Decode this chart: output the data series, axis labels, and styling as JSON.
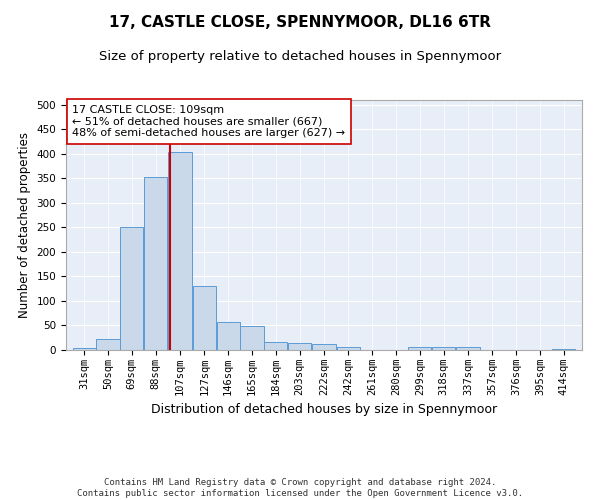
{
  "title1": "17, CASTLE CLOSE, SPENNYMOOR, DL16 6TR",
  "title2": "Size of property relative to detached houses in Spennymoor",
  "xlabel": "Distribution of detached houses by size in Spennymoor",
  "ylabel": "Number of detached properties",
  "bin_edges": [
    31,
    50,
    69,
    88,
    107,
    127,
    146,
    165,
    184,
    203,
    222,
    242,
    261,
    280,
    299,
    318,
    337,
    357,
    376,
    395,
    414
  ],
  "bar_heights": [
    5,
    22,
    250,
    353,
    403,
    130,
    57,
    48,
    17,
    14,
    12,
    6,
    1,
    0,
    6,
    6,
    6,
    0,
    1,
    0,
    3
  ],
  "bar_color": "#c9d9ea",
  "bar_edge_color": "#5b9bd5",
  "vline_x": 109,
  "vline_color": "#cc0000",
  "annotation_line1": "17 CASTLE CLOSE: 109sqm",
  "annotation_line2": "← 51% of detached houses are smaller (667)",
  "annotation_line3": "48% of semi-detached houses are larger (627) →",
  "annotation_box_color": "#ffffff",
  "annotation_box_edge": "#cc0000",
  "ylim": [
    0,
    510
  ],
  "yticks": [
    0,
    50,
    100,
    150,
    200,
    250,
    300,
    350,
    400,
    450,
    500
  ],
  "background_color": "#e8eef7",
  "footer": "Contains HM Land Registry data © Crown copyright and database right 2024.\nContains public sector information licensed under the Open Government Licence v3.0.",
  "title1_fontsize": 11,
  "title2_fontsize": 9.5,
  "xlabel_fontsize": 9,
  "ylabel_fontsize": 8.5,
  "tick_fontsize": 7.5,
  "annotation_fontsize": 8,
  "footer_fontsize": 6.5
}
